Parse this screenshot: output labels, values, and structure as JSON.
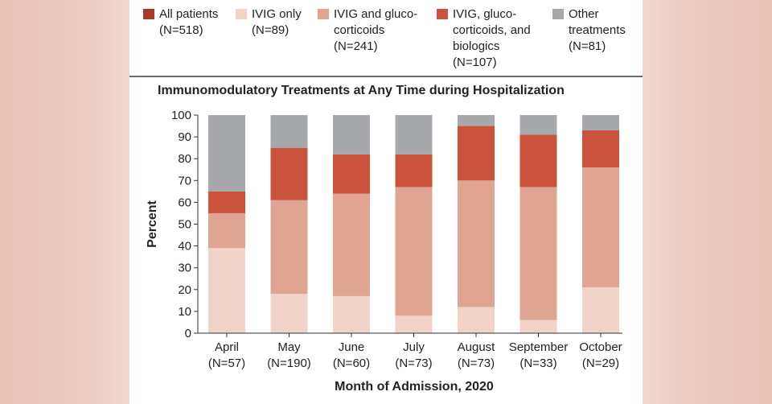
{
  "legend": [
    {
      "line1": "All patients",
      "line2": "(N=518)",
      "line3": "",
      "line4": "",
      "color": "#a8392a"
    },
    {
      "line1": "IVIG only",
      "line2": "(N=89)",
      "line3": "",
      "line4": "",
      "color": "#f1d3c8"
    },
    {
      "line1": "IVIG and gluco-",
      "line2": "corticoids",
      "line3": "(N=241)",
      "line4": "",
      "color": "#dfa592"
    },
    {
      "line1": "IVIG, gluco-",
      "line2": "corticoids, and",
      "line3": "biologics",
      "line4": "(N=107)",
      "color": "#cc533b"
    },
    {
      "line1": "Other",
      "line2": "treatments",
      "line3": "(N=81)",
      "line4": "",
      "color": "#a6a8ab"
    }
  ],
  "chart_data": {
    "type": "bar",
    "stacked": true,
    "title": "Immunomodulatory Treatments at Any Time during Hospitalization",
    "xlabel": "Month of Admission, 2020",
    "ylabel": "Percent",
    "ylim": [
      0,
      100
    ],
    "yticks": [
      0,
      10,
      20,
      30,
      40,
      50,
      60,
      70,
      80,
      90,
      100
    ],
    "categories": [
      "April",
      "May",
      "June",
      "July",
      "August",
      "September",
      "October"
    ],
    "category_n": [
      "(N=57)",
      "(N=190)",
      "(N=60)",
      "(N=73)",
      "(N=73)",
      "(N=33)",
      "(N=29)"
    ],
    "series": [
      {
        "name": "IVIG only",
        "color": "#f1d3c8",
        "values": [
          39,
          18,
          17,
          8,
          12,
          6,
          21
        ]
      },
      {
        "name": "IVIG and glucocorticoids",
        "color": "#dfa592",
        "values": [
          16,
          43,
          47,
          59,
          58,
          61,
          55
        ]
      },
      {
        "name": "IVIG, glucocorticoids, and biologics",
        "color": "#cc533b",
        "values": [
          10,
          24,
          18,
          15,
          25,
          24,
          17
        ]
      },
      {
        "name": "Other treatments",
        "color": "#a6a8ab",
        "values": [
          35,
          15,
          18,
          18,
          5,
          9,
          7
        ]
      }
    ]
  }
}
